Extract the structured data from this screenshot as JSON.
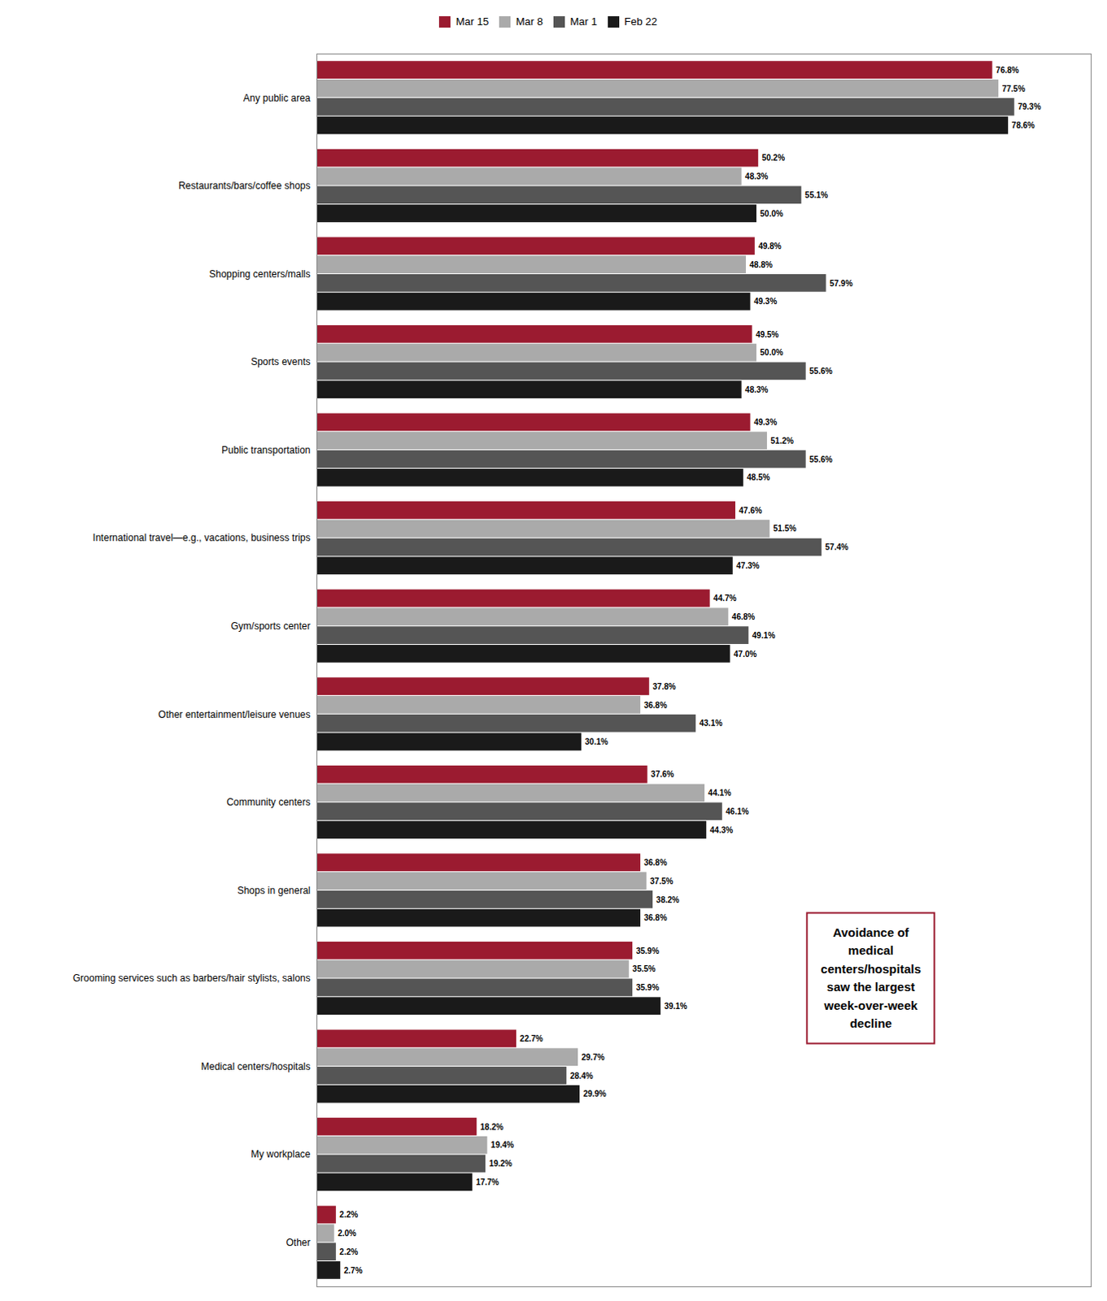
{
  "chart_data": {
    "type": "bar",
    "orientation": "horizontal",
    "categories": [
      "Any public area",
      "Restaurants/bars/coffee shops",
      "Shopping centers/malls",
      "Sports events",
      "Public transportation",
      "International travel—e.g., vacations, business trips",
      "Gym/sports center",
      "Other entertainment/leisure venues",
      "Community centers",
      "Shops in general",
      "Grooming services such as barbers/hair stylists, salons",
      "Medical centers/hospitals",
      "My workplace",
      "Other"
    ],
    "series": [
      {
        "name": "Mar 15",
        "color": "#9B1B30",
        "values": [
          76.8,
          50.2,
          49.8,
          49.5,
          49.3,
          47.6,
          44.7,
          37.8,
          37.6,
          36.8,
          35.9,
          22.7,
          18.2,
          2.2
        ],
        "value_labels": [
          "76.8%",
          "50.2%",
          "49.8%",
          "49.5%",
          "49.3%",
          "47.6%",
          "44.7%",
          "37.8%",
          "37.6%",
          "36.8%",
          "35.9%",
          "22.7%",
          "18.2%",
          "2.2%"
        ]
      },
      {
        "name": "Mar 8",
        "color": "#AAAAAA",
        "values": [
          77.5,
          48.3,
          48.8,
          50.0,
          51.2,
          51.5,
          46.8,
          36.8,
          44.1,
          37.5,
          35.5,
          29.7,
          19.4,
          2.0
        ],
        "value_labels": [
          "77.5%",
          "48.3%",
          "48.8%",
          "50.0%",
          "51.2%",
          "51.5%",
          "46.8%",
          "36.8%",
          "44.1%",
          "37.5%",
          "35.5%",
          "29.7%",
          "19.4%",
          "2.0%"
        ]
      },
      {
        "name": "Mar 1",
        "color": "#555555",
        "values": [
          79.3,
          55.1,
          57.9,
          55.6,
          55.6,
          57.4,
          49.1,
          43.1,
          46.1,
          38.2,
          35.9,
          28.4,
          19.2,
          2.2
        ],
        "value_labels": [
          "79.3%",
          "55.1%",
          "57.9%",
          "55.6%",
          "55.6%",
          "57.4%",
          "49.1%",
          "43.1%",
          "46.1%",
          "38.2%",
          "35.9%",
          "28.4%",
          "19.2%",
          "2.2%"
        ]
      },
      {
        "name": "Feb 22",
        "color": "#1A1A1A",
        "values": [
          78.6,
          50.0,
          49.3,
          48.3,
          48.5,
          47.3,
          47.0,
          30.1,
          44.3,
          36.8,
          39.1,
          29.9,
          17.7,
          2.7
        ],
        "value_labels": [
          "78.6%",
          "50.0%",
          "49.3%",
          "48.3%",
          "48.5%",
          "47.3%",
          "47.0%",
          "30.1%",
          "44.3%",
          "36.8%",
          "39.1%",
          "29.9%",
          "17.7%",
          "2.7%"
        ]
      }
    ],
    "xlim": [
      0,
      88
    ],
    "xticks": [],
    "annotations": [
      "Avoidance of\nmedical\ncenters/hospitals\nsaw the largest\nweek-over-week\ndecline"
    ],
    "legend": "top",
    "data_labels": true,
    "tick_labels": "y",
    "grid": false
  }
}
